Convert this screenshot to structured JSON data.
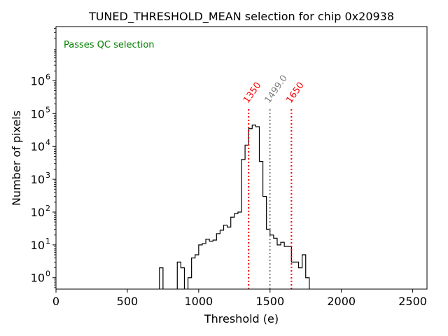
{
  "chart_data": {
    "type": "histogram",
    "title": "TUNED_THRESHOLD_MEAN selection for chip 0x20938",
    "xlabel": "Threshold (e)",
    "ylabel": "Number of pixels",
    "y_scale": "log",
    "xlim": [
      0,
      2600
    ],
    "ylim": [
      0.45,
      45000000
    ],
    "x_ticks": [
      0,
      500,
      1000,
      1500,
      2000,
      2500
    ],
    "x_tick_labels": [
      "0",
      "500",
      "1000",
      "1500",
      "2000",
      "2500"
    ],
    "y_ticks": [
      1,
      10,
      100,
      1000,
      10000,
      100000,
      1000000
    ],
    "y_tick_labels": [
      "10^0",
      "10^1",
      "10^2",
      "10^3",
      "10^4",
      "10^5",
      "10^6"
    ],
    "annotation": {
      "text": "Passes QC selection",
      "color": "#008000",
      "placement": "top-left"
    },
    "bin_edges": [
      725,
      750,
      775,
      800,
      825,
      850,
      875,
      900,
      925,
      950,
      975,
      1000,
      1025,
      1050,
      1075,
      1100,
      1125,
      1150,
      1175,
      1200,
      1225,
      1250,
      1275,
      1300,
      1325,
      1350,
      1375,
      1400,
      1425,
      1450,
      1475,
      1500,
      1525,
      1550,
      1575,
      1600,
      1625,
      1650,
      1675,
      1700,
      1725,
      1750,
      1775,
      1800,
      1825,
      1850,
      1875,
      1900,
      1925,
      1950,
      1975,
      2000
    ],
    "counts": [
      2,
      0,
      0,
      0,
      0,
      3,
      2,
      0,
      1,
      4,
      5,
      10,
      11,
      15,
      13,
      14,
      22,
      28,
      40,
      35,
      70,
      90,
      100,
      4000,
      11000,
      35000,
      45000,
      40000,
      3500,
      300,
      30,
      20,
      16,
      10,
      12,
      9,
      9,
      3,
      3,
      2,
      5,
      1,
      0,
      0,
      0,
      0,
      0,
      0,
      0,
      0,
      0
    ],
    "vlines": [
      {
        "x": 1350,
        "label": "1350",
        "color": "#ff0000",
        "style": "dotted"
      },
      {
        "x": 1499.0,
        "label": "1499.0",
        "color": "#808080",
        "style": "dotted"
      },
      {
        "x": 1650,
        "label": "1650",
        "color": "#ff0000",
        "style": "dotted"
      }
    ]
  }
}
